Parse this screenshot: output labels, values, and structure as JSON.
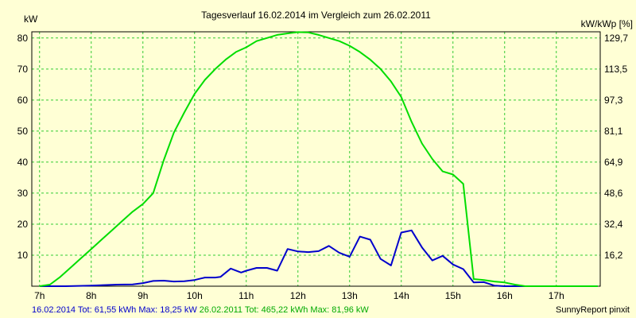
{
  "chart_data": {
    "type": "line",
    "title": "Tagesverlauf 16.02.2014 im Vergleich zum 26.02.2011",
    "ylabel": "kW",
    "ylabel_right": "kW/kWp [%]",
    "ylim": [
      0,
      82
    ],
    "yticks": [
      10,
      20,
      30,
      40,
      50,
      60,
      70,
      80
    ],
    "yticks_right": [
      "16,2",
      "32,4",
      "48,6",
      "64,9",
      "81,1",
      "97,3",
      "113,5",
      "129,7"
    ],
    "xlim": [
      6.85,
      17.85
    ],
    "xticks": [
      "7h",
      "8h",
      "9h",
      "10h",
      "11h",
      "12h",
      "13h",
      "14h",
      "15h",
      "16h",
      "17h"
    ],
    "grid": true,
    "series": [
      {
        "name": "16.02.2014",
        "color": "#0000cc",
        "x": [
          7.0,
          7.5,
          8.0,
          8.5,
          8.8,
          9.0,
          9.2,
          9.4,
          9.6,
          9.8,
          10.0,
          10.2,
          10.4,
          10.5,
          10.7,
          10.9,
          11.0,
          11.2,
          11.4,
          11.6,
          11.8,
          12.0,
          12.2,
          12.4,
          12.6,
          12.8,
          13.0,
          13.2,
          13.4,
          13.6,
          13.8,
          14.0,
          14.2,
          14.4,
          14.6,
          14.8,
          15.0,
          15.2,
          15.4,
          15.6,
          15.8,
          16.0,
          16.2,
          16.3,
          16.5,
          16.7,
          17.0,
          17.5,
          17.8
        ],
        "y": [
          0,
          0,
          0.2,
          0.5,
          0.6,
          1.0,
          1.7,
          1.8,
          1.5,
          1.6,
          2.0,
          2.8,
          2.8,
          3.0,
          5.7,
          4.4,
          5.0,
          5.9,
          5.9,
          5.0,
          12.0,
          11.2,
          11.0,
          11.3,
          13.0,
          10.8,
          9.5,
          16.0,
          15.0,
          8.8,
          6.7,
          17.3,
          18.0,
          12.5,
          8.3,
          9.8,
          7.0,
          5.5,
          1.2,
          1.3,
          0.2,
          0,
          0,
          0,
          0,
          0,
          0,
          0,
          0
        ]
      },
      {
        "name": "26.02.2011",
        "color": "#00dd00",
        "x": [
          7.0,
          7.2,
          7.4,
          7.6,
          7.8,
          8.0,
          8.2,
          8.4,
          8.6,
          8.8,
          9.0,
          9.2,
          9.4,
          9.6,
          9.8,
          10.0,
          10.2,
          10.4,
          10.6,
          10.8,
          11.0,
          11.2,
          11.4,
          11.6,
          11.8,
          12.0,
          12.2,
          12.4,
          12.6,
          12.8,
          13.0,
          13.2,
          13.4,
          13.6,
          13.8,
          14.0,
          14.2,
          14.4,
          14.6,
          14.8,
          15.0,
          15.2,
          15.4,
          15.6,
          15.8,
          16.0,
          16.2,
          16.4,
          16.6,
          16.8,
          17.0,
          17.2,
          17.4,
          17.6,
          17.8
        ],
        "y": [
          0,
          0.5,
          3.0,
          6.0,
          9.0,
          12.0,
          15.0,
          18.0,
          21.0,
          24.0,
          26.5,
          30.0,
          40.5,
          49.5,
          56.0,
          62.0,
          66.5,
          70.0,
          73.0,
          75.5,
          77.0,
          79.0,
          80.0,
          81.0,
          81.5,
          81.9,
          81.8,
          81.0,
          80.0,
          79.0,
          77.5,
          75.5,
          73.0,
          70.0,
          66.0,
          61.0,
          53.0,
          46.0,
          41.0,
          37.0,
          36.0,
          33.0,
          2.3,
          2.0,
          1.5,
          1.2,
          0.5,
          0,
          0,
          0,
          0,
          0,
          0,
          0,
          0
        ]
      }
    ]
  },
  "footer": {
    "blue_text": "16.02.2014 Tot: 61,55 kWh Max: 18,25 kW",
    "green_text": "26.02.2011 Tot: 465,22 kWh Max: 81,96 kW",
    "credit": "SunnyReport pinxit"
  }
}
